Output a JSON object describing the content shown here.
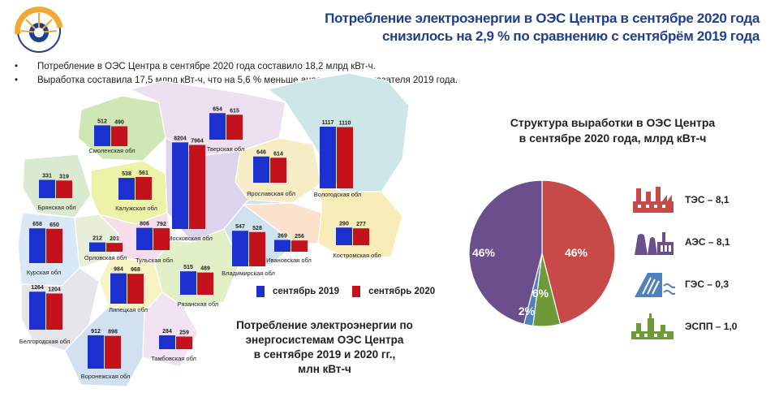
{
  "header": {
    "title_line1": "Потребление электроэнергии в ОЭС Центра в сентябре 2020 года",
    "title_line2": "снизилось на 2,9 % по сравнению с сентябрём 2019 года"
  },
  "bullets": [
    "Потребление  в ОЭС Центра  в сентябре  2020  года составило  18,2 млрд  кВт-ч.",
    "Выработка  составила  17,5 млрд  кВт-ч, что  на  5,6 % меньше  аналогичного  показателя  2019 года."
  ],
  "colors": {
    "series_2019": "#1c2fcf",
    "series_2020": "#c3121c",
    "tes": "#c84a48",
    "aes": "#6b4f8c",
    "ges": "#4f81bd",
    "espp": "#6e9a3a"
  },
  "map_caption": [
    "Потребление электроэнергии по",
    "энергосистемам ОЭС Центра",
    "в сентябре 2019 и 2020 гг.,",
    "млн кВт-ч"
  ],
  "legend": {
    "s2019": "сентябрь 2019",
    "s2020": "сентябрь 2020"
  },
  "pie_title": [
    "Структура выработки в ОЭС Центра",
    "в сентябре 2020 года, млрд кВт-ч"
  ],
  "gen_legend": [
    {
      "label": "ТЭС – 8,1",
      "icon": "tes-plant-icon"
    },
    {
      "label": "АЭС – 8,1",
      "icon": "nuclear-plant-icon"
    },
    {
      "label": "ГЭС – 0,3",
      "icon": "hydro-plant-icon"
    },
    {
      "label": "ЭСПП – 1,0",
      "icon": "industrial-plant-icon"
    }
  ],
  "chart_data": [
    {
      "type": "bar",
      "series": [
        {
          "name": "сентябрь 2019"
        },
        {
          "name": "сентябрь 2020"
        }
      ],
      "regions": [
        {
          "name": "Смоленская обл",
          "v2019": 512,
          "v2020": 490
        },
        {
          "name": "Тверская обл",
          "v2019": 654,
          "v2020": 615
        },
        {
          "name": "Ярославская обл",
          "v2019": 646,
          "v2020": 614
        },
        {
          "name": "Вологодская обл",
          "v2019": 1117,
          "v2020": 1110
        },
        {
          "name": "Брянская обл",
          "v2019": 331,
          "v2020": 319
        },
        {
          "name": "Калужская обл",
          "v2019": 538,
          "v2020": 561
        },
        {
          "name": "Московская обл",
          "v2019": 8204,
          "v2020": 7964
        },
        {
          "name": "Курская обл",
          "v2019": 658,
          "v2020": 650
        },
        {
          "name": "Орловская обл",
          "v2019": 212,
          "v2020": 201
        },
        {
          "name": "Тульская обл",
          "v2019": 806,
          "v2020": 792
        },
        {
          "name": "Владимирская обл",
          "v2019": 547,
          "v2020": 528
        },
        {
          "name": "Ивановская обл",
          "v2019": 269,
          "v2020": 256
        },
        {
          "name": "Костромская обл",
          "v2019": 290,
          "v2020": 277
        },
        {
          "name": "Липецкая обл",
          "v2019": 984,
          "v2020": 968
        },
        {
          "name": "Рязанская обл",
          "v2019": 515,
          "v2020": 489
        },
        {
          "name": "Белгородская обл",
          "v2019": 1264,
          "v2020": 1204
        },
        {
          "name": "Воронежская обл",
          "v2019": 912,
          "v2020": 898
        },
        {
          "name": "Тамбовская обл",
          "v2019": 284,
          "v2020": 259
        }
      ]
    },
    {
      "type": "pie",
      "slices": [
        {
          "name": "ТЭС",
          "value": 46,
          "label": "46%"
        },
        {
          "name": "АЭС",
          "value": 46,
          "label": "46%"
        },
        {
          "name": "ГЭС",
          "value": 2,
          "label": "2%"
        },
        {
          "name": "ЭСПП",
          "value": 6,
          "label": "6%"
        }
      ]
    }
  ]
}
